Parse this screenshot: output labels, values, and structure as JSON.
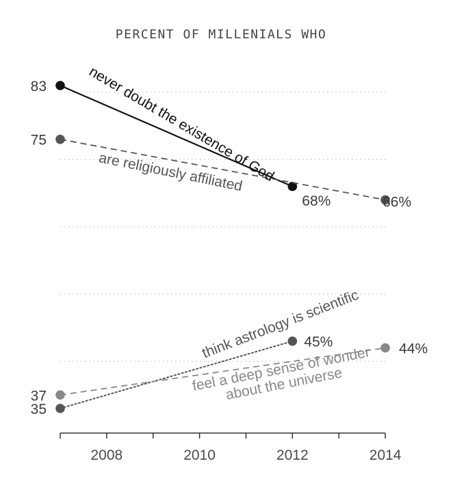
{
  "chart_data": {
    "type": "line",
    "title": "PERCENT OF MILLENIALS WHO",
    "xlabel": "",
    "ylabel": "",
    "x_ticks": [
      2007,
      2008,
      2009,
      2010,
      2011,
      2012,
      2013,
      2014
    ],
    "x_tick_labels": [
      {
        "year": 2008,
        "label": "2008"
      },
      {
        "year": 2010,
        "label": "2010"
      },
      {
        "year": 2012,
        "label": "2012"
      },
      {
        "year": 2014,
        "label": "2014"
      }
    ],
    "xlim": [
      2007,
      2014
    ],
    "ylim": [
      30,
      86
    ],
    "grid": true,
    "gridlines_y": [
      42,
      52,
      62,
      72,
      82
    ],
    "series": [
      {
        "name": "never doubt the existence of God",
        "color": "#111111",
        "dash": "solid",
        "points": [
          {
            "x": 2007,
            "y": 83
          },
          {
            "x": 2012,
            "y": 68
          }
        ],
        "start_label": "83",
        "end_label": "68%"
      },
      {
        "name": "are religiously affiliated",
        "color": "#555555",
        "dash": "dashed",
        "points": [
          {
            "x": 2007,
            "y": 75
          },
          {
            "x": 2014,
            "y": 66
          }
        ],
        "start_label": "75",
        "end_label": "66%"
      },
      {
        "name": "think astrology is scientific",
        "color": "#555555",
        "dash": "dotted",
        "points": [
          {
            "x": 2007,
            "y": 35
          },
          {
            "x": 2012,
            "y": 45
          }
        ],
        "start_label": "35",
        "end_label": "45%"
      },
      {
        "name": "feel a deep sense of wonder about the universe",
        "label_lines": [
          "feel a deep sense of wonder",
          "about the universe"
        ],
        "color": "#888888",
        "dash": "dashed",
        "points": [
          {
            "x": 2007,
            "y": 37
          },
          {
            "x": 2014,
            "y": 44
          }
        ],
        "start_label": "37",
        "end_label": "44%"
      }
    ]
  }
}
